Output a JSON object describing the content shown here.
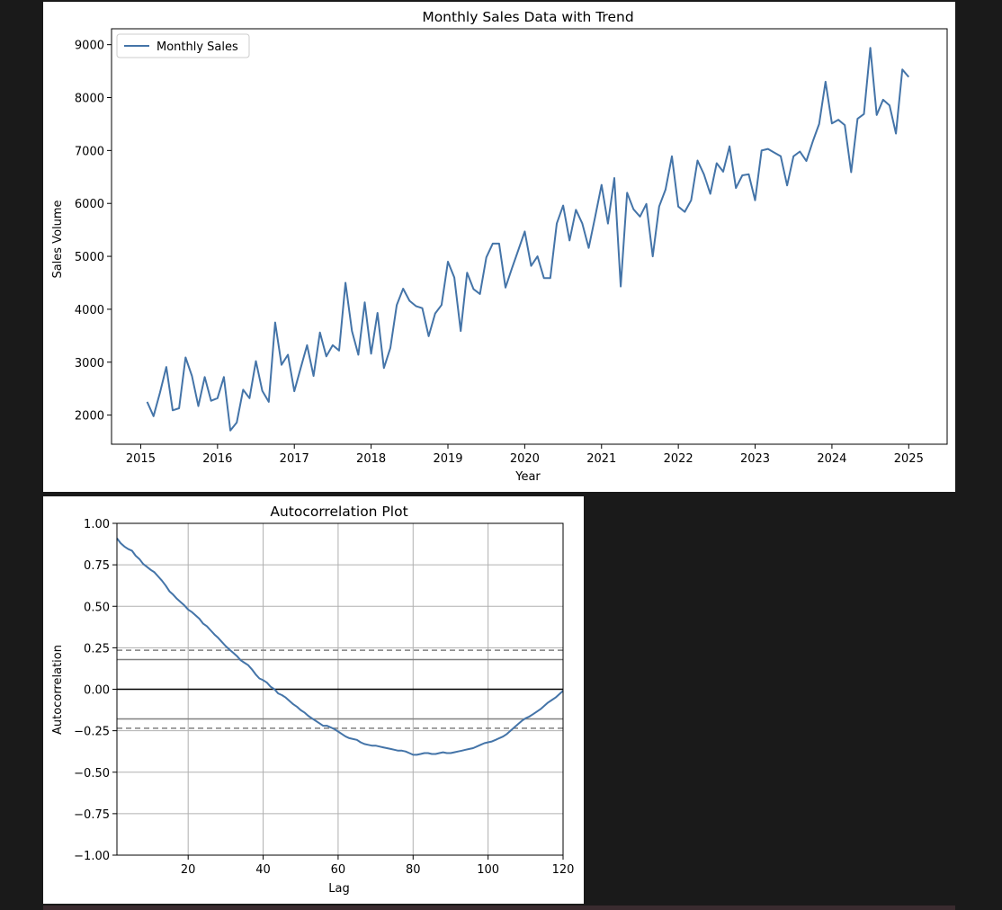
{
  "chart_data": [
    {
      "type": "line",
      "title": "Monthly Sales Data with Trend",
      "xlabel": "Year",
      "ylabel": "Sales Volume",
      "xlim": [
        2014.62,
        2025.5
      ],
      "ylim": [
        1450,
        9300
      ],
      "x_ticks": [
        "2015",
        "2016",
        "2017",
        "2018",
        "2019",
        "2020",
        "2021",
        "2022",
        "2023",
        "2024",
        "2025"
      ],
      "y_ticks": [
        "2000",
        "3000",
        "4000",
        "5000",
        "6000",
        "7000",
        "8000",
        "9000"
      ],
      "grid": false,
      "legend_position": "upper left",
      "line_color": "#4474a8",
      "series": [
        {
          "name": "Monthly Sales",
          "x_start": "2015-01",
          "x_step": "1 month",
          "values": [
            2250,
            1980,
            2420,
            2910,
            2090,
            2130,
            3090,
            2740,
            2170,
            2720,
            2270,
            2320,
            2720,
            1710,
            1860,
            2480,
            2320,
            3020,
            2460,
            2250,
            3750,
            2950,
            3140,
            2450,
            2890,
            3320,
            2740,
            3560,
            3110,
            3320,
            3220,
            4500,
            3590,
            3140,
            4130,
            3160,
            3930,
            2890,
            3270,
            4080,
            4390,
            4160,
            4060,
            4020,
            3490,
            3920,
            4080,
            4900,
            4600,
            3590,
            4690,
            4380,
            4290,
            4980,
            5240,
            5240,
            4410,
            4770,
            5120,
            5470,
            4820,
            5000,
            4590,
            4590,
            5620,
            5960,
            5300,
            5880,
            5620,
            5160,
            5740,
            6350,
            5620,
            6480,
            4430,
            6200,
            5890,
            5750,
            5990,
            5000,
            5940,
            6260,
            6890,
            5940,
            5840,
            6060,
            6810,
            6550,
            6180,
            6760,
            6600,
            7080,
            6290,
            6530,
            6550,
            6060,
            7000,
            7030,
            6960,
            6890,
            6340,
            6890,
            6980,
            6800,
            7170,
            7500,
            8300,
            7510,
            7580,
            7480,
            6590,
            7600,
            7690,
            8940,
            7670,
            7960,
            7850,
            7320,
            8530,
            8390
          ]
        }
      ]
    },
    {
      "type": "line",
      "title": "Autocorrelation Plot",
      "xlabel": "Lag",
      "ylabel": "Autocorrelation",
      "xlim": [
        1,
        120
      ],
      "ylim": [
        -1.0,
        1.0
      ],
      "x_ticks": [
        "20",
        "40",
        "60",
        "80",
        "100",
        "120"
      ],
      "y_ticks": [
        "1.00",
        "0.75",
        "0.50",
        "0.25",
        "0.00",
        "−0.25",
        "−0.50",
        "−0.75",
        "−1.00"
      ],
      "grid": true,
      "line_color": "#4474a8",
      "reference_lines": {
        "zero": 0.0,
        "z99": [
          0.2351,
          -0.2351
        ],
        "z95": [
          0.1789,
          -0.1789
        ]
      },
      "series": [
        {
          "x_start": 1,
          "x_step": 1,
          "values": [
            0.91,
            0.88,
            0.86,
            0.845,
            0.835,
            0.805,
            0.785,
            0.755,
            0.738,
            0.72,
            0.705,
            0.68,
            0.655,
            0.625,
            0.59,
            0.57,
            0.545,
            0.525,
            0.505,
            0.48,
            0.465,
            0.445,
            0.425,
            0.395,
            0.38,
            0.355,
            0.33,
            0.31,
            0.285,
            0.26,
            0.24,
            0.22,
            0.2,
            0.175,
            0.16,
            0.145,
            0.12,
            0.09,
            0.065,
            0.055,
            0.04,
            0.015,
            0.0,
            -0.025,
            -0.035,
            -0.05,
            -0.07,
            -0.09,
            -0.105,
            -0.125,
            -0.14,
            -0.16,
            -0.175,
            -0.19,
            -0.205,
            -0.22,
            -0.22,
            -0.23,
            -0.24,
            -0.255,
            -0.27,
            -0.285,
            -0.295,
            -0.3,
            -0.305,
            -0.32,
            -0.33,
            -0.335,
            -0.34,
            -0.34,
            -0.345,
            -0.35,
            -0.355,
            -0.36,
            -0.365,
            -0.37,
            -0.37,
            -0.375,
            -0.385,
            -0.395,
            -0.395,
            -0.39,
            -0.385,
            -0.385,
            -0.39,
            -0.39,
            -0.385,
            -0.38,
            -0.385,
            -0.385,
            -0.38,
            -0.375,
            -0.37,
            -0.365,
            -0.36,
            -0.355,
            -0.345,
            -0.335,
            -0.325,
            -0.32,
            -0.315,
            -0.305,
            -0.295,
            -0.285,
            -0.27,
            -0.25,
            -0.23,
            -0.21,
            -0.19,
            -0.175,
            -0.165,
            -0.15,
            -0.135,
            -0.12,
            -0.1,
            -0.08,
            -0.065,
            -0.05,
            -0.03,
            -0.01
          ]
        }
      ]
    }
  ]
}
